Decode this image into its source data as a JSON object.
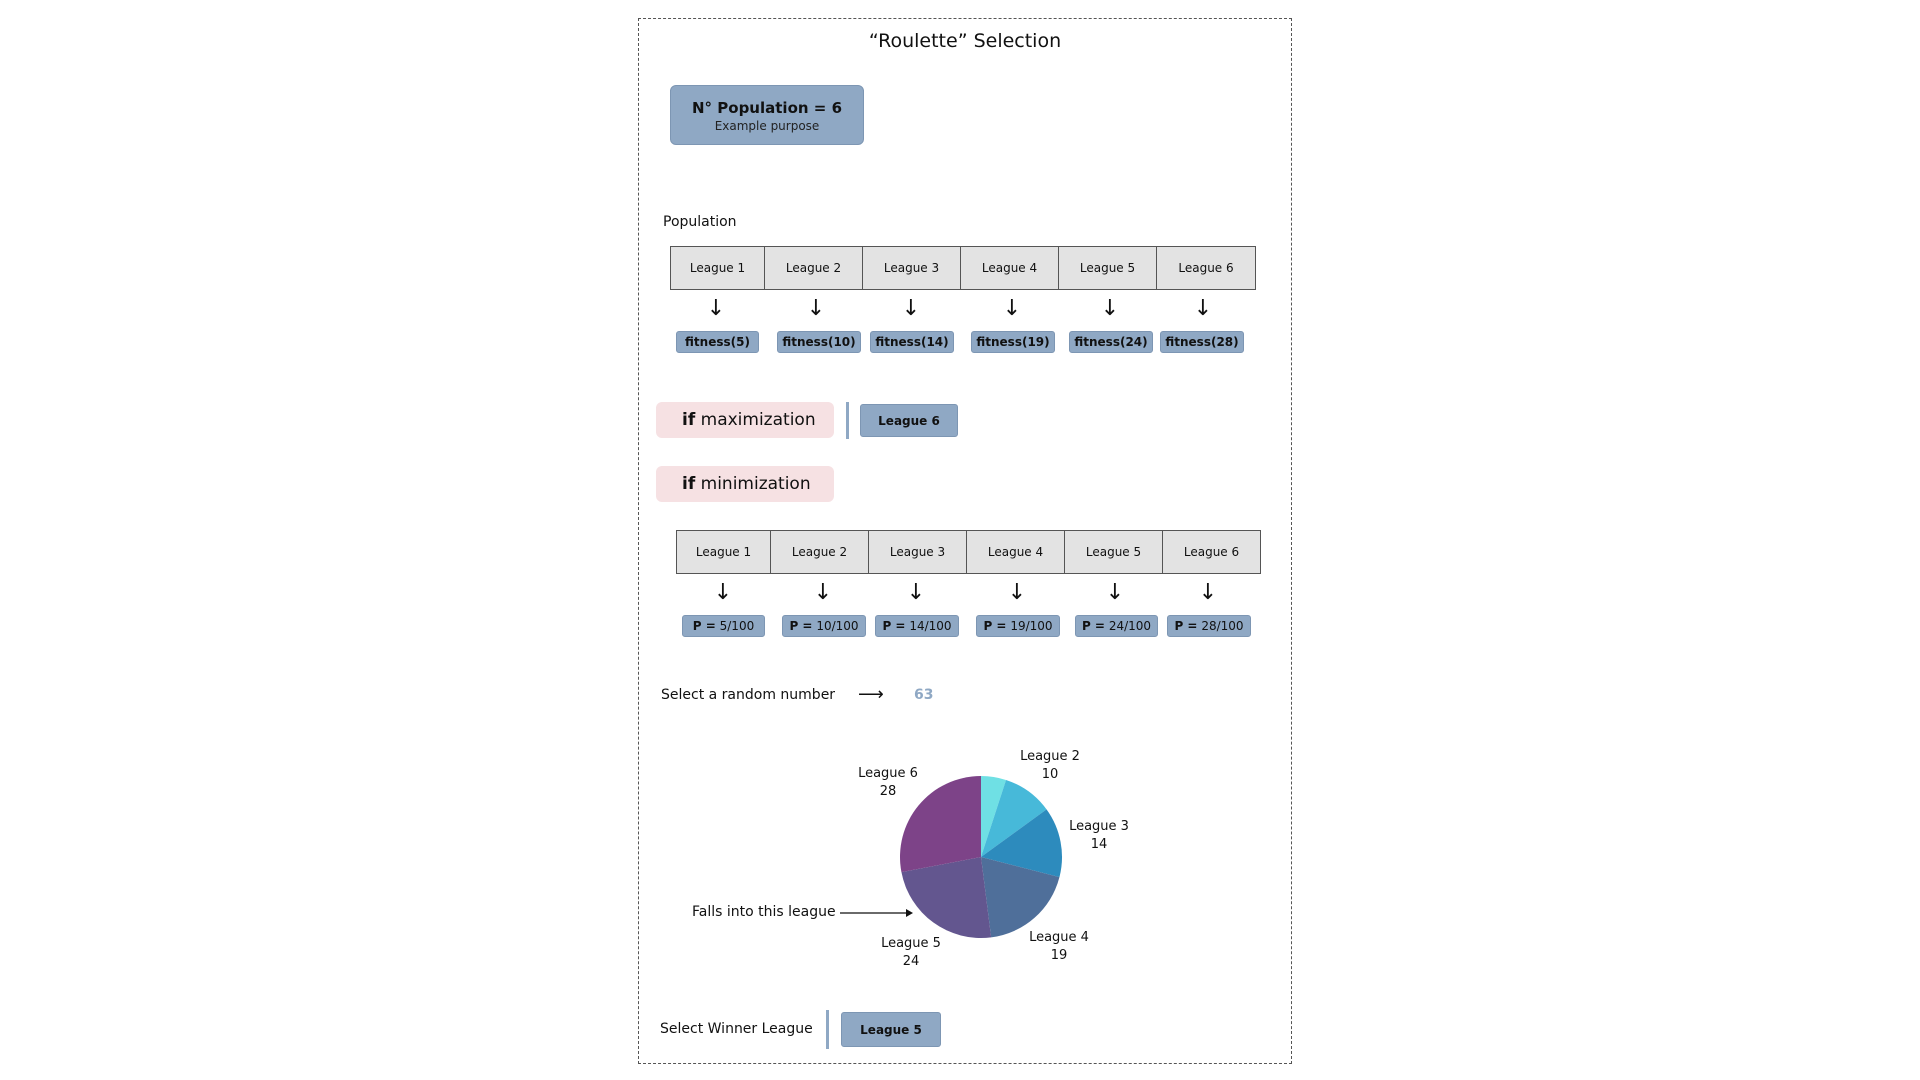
{
  "title": "“Roulette” Selection",
  "population_box": {
    "main": "N° Population = 6",
    "sub": "Example purpose"
  },
  "population_label": "Population",
  "leagues": [
    "League 1",
    "League 2",
    "League 3",
    "League 4",
    "League 5",
    "League 6"
  ],
  "arrow_glyph": "↓",
  "fitness_labels": [
    "fitness(5)",
    "fitness(10)",
    "fitness(14)",
    "fitness(19)",
    "fitness(24)",
    "fitness(28)"
  ],
  "maximization": {
    "keyword": "if",
    "text": "maximization",
    "result": "League 6"
  },
  "minimization": {
    "keyword": "if",
    "text": "minimization"
  },
  "probabilities": [
    {
      "prefix": "P =",
      "value": "5/100"
    },
    {
      "prefix": "P =",
      "value": "10/100"
    },
    {
      "prefix": "P =",
      "value": "14/100"
    },
    {
      "prefix": "P =",
      "value": "19/100"
    },
    {
      "prefix": "P =",
      "value": "24/100"
    },
    {
      "prefix": "P =",
      "value": "28/100"
    }
  ],
  "random": {
    "label": "Select a random number",
    "arrow": "⟶",
    "value": "63"
  },
  "falls_into": "Falls into this league",
  "winner": {
    "label": "Select Winner League",
    "result": "League 5"
  },
  "pie": {
    "colors": [
      "#6fe0e4",
      "#47b9d9",
      "#2d8bbd",
      "#4f6f9a",
      "#63568f",
      "#7d4388"
    ],
    "slices": [
      {
        "name": "League 1",
        "value": 5,
        "label_name": "",
        "label_value": ""
      },
      {
        "name": "League 2",
        "value": 10,
        "label_name": "League 2",
        "label_value": "10"
      },
      {
        "name": "League 3",
        "value": 14,
        "label_name": "League 3",
        "label_value": "14"
      },
      {
        "name": "League 4",
        "value": 19,
        "label_name": "League 4",
        "label_value": "19"
      },
      {
        "name": "League 5",
        "value": 24,
        "label_name": "League 5",
        "label_value": "24"
      },
      {
        "name": "League 6",
        "value": 28,
        "label_name": "League 6",
        "label_value": "28"
      }
    ]
  }
}
